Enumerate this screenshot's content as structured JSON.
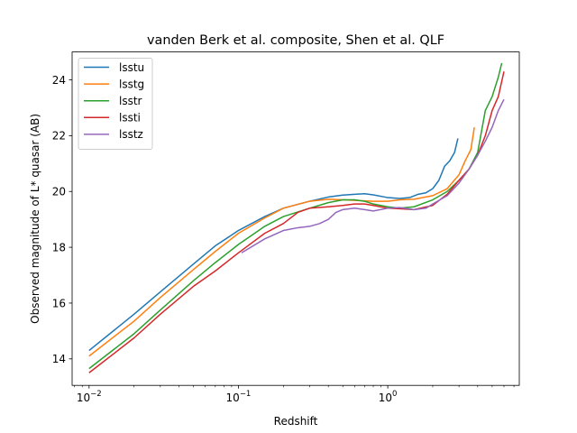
{
  "chart_data": {
    "type": "line",
    "title": "vanden Berk et al. composite, Shen et al. QLF",
    "xlabel": "Redshift",
    "ylabel": "Observed magnitude of L* quasar (AB)",
    "xscale": "log",
    "xlim": [
      0.0077,
      7.6
    ],
    "ylim": [
      13.05,
      25.0
    ],
    "x_ticks": [
      {
        "value": 0.01,
        "base": "10",
        "exp": "−2"
      },
      {
        "value": 0.1,
        "base": "10",
        "exp": "−1"
      },
      {
        "value": 1,
        "base": "10",
        "exp": "0"
      }
    ],
    "y_ticks": [
      {
        "value": 14,
        "label": "14"
      },
      {
        "value": 16,
        "label": "16"
      },
      {
        "value": 18,
        "label": "18"
      },
      {
        "value": 20,
        "label": "20"
      },
      {
        "value": 22,
        "label": "22"
      },
      {
        "value": 24,
        "label": "24"
      }
    ],
    "grid": false,
    "legend": "upper left",
    "series": [
      {
        "name": "lsstu",
        "color": "#1f77b4",
        "points": [
          [
            0.01,
            14.3
          ],
          [
            0.02,
            15.6
          ],
          [
            0.03,
            16.4
          ],
          [
            0.05,
            17.4
          ],
          [
            0.07,
            18.05
          ],
          [
            0.1,
            18.6
          ],
          [
            0.15,
            19.1
          ],
          [
            0.2,
            19.4
          ],
          [
            0.3,
            19.65
          ],
          [
            0.4,
            19.8
          ],
          [
            0.5,
            19.87
          ],
          [
            0.6,
            19.9
          ],
          [
            0.7,
            19.92
          ],
          [
            0.8,
            19.88
          ],
          [
            1.0,
            19.78
          ],
          [
            1.2,
            19.75
          ],
          [
            1.4,
            19.78
          ],
          [
            1.6,
            19.9
          ],
          [
            1.8,
            19.95
          ],
          [
            2.0,
            20.1
          ],
          [
            2.2,
            20.4
          ],
          [
            2.4,
            20.9
          ],
          [
            2.6,
            21.1
          ],
          [
            2.8,
            21.4
          ],
          [
            2.95,
            21.9
          ]
        ]
      },
      {
        "name": "lsstg",
        "color": "#ff7f0e",
        "points": [
          [
            0.01,
            14.1
          ],
          [
            0.02,
            15.35
          ],
          [
            0.03,
            16.2
          ],
          [
            0.05,
            17.2
          ],
          [
            0.07,
            17.85
          ],
          [
            0.1,
            18.5
          ],
          [
            0.15,
            19.05
          ],
          [
            0.2,
            19.4
          ],
          [
            0.3,
            19.65
          ],
          [
            0.4,
            19.72
          ],
          [
            0.5,
            19.7
          ],
          [
            0.6,
            19.68
          ],
          [
            0.8,
            19.65
          ],
          [
            1.0,
            19.65
          ],
          [
            1.2,
            19.7
          ],
          [
            1.5,
            19.72
          ],
          [
            2.0,
            19.85
          ],
          [
            2.5,
            20.1
          ],
          [
            3.0,
            20.6
          ],
          [
            3.3,
            21.1
          ],
          [
            3.6,
            21.5
          ],
          [
            3.8,
            22.3
          ]
        ]
      },
      {
        "name": "lsstr",
        "color": "#2ca02c",
        "points": [
          [
            0.01,
            13.65
          ],
          [
            0.02,
            14.9
          ],
          [
            0.03,
            15.75
          ],
          [
            0.05,
            16.8
          ],
          [
            0.07,
            17.45
          ],
          [
            0.1,
            18.1
          ],
          [
            0.15,
            18.75
          ],
          [
            0.2,
            19.1
          ],
          [
            0.3,
            19.4
          ],
          [
            0.4,
            19.6
          ],
          [
            0.5,
            19.7
          ],
          [
            0.6,
            19.7
          ],
          [
            0.7,
            19.65
          ],
          [
            0.8,
            19.55
          ],
          [
            1.0,
            19.45
          ],
          [
            1.2,
            19.4
          ],
          [
            1.5,
            19.45
          ],
          [
            2.0,
            19.7
          ],
          [
            2.5,
            20.0
          ],
          [
            3.0,
            20.4
          ],
          [
            3.5,
            20.8
          ],
          [
            4.0,
            21.4
          ],
          [
            4.5,
            22.9
          ],
          [
            5.0,
            23.4
          ],
          [
            5.5,
            24.1
          ],
          [
            5.8,
            24.6
          ]
        ]
      },
      {
        "name": "lssti",
        "color": "#d62728",
        "points": [
          [
            0.01,
            13.5
          ],
          [
            0.02,
            14.75
          ],
          [
            0.03,
            15.6
          ],
          [
            0.05,
            16.6
          ],
          [
            0.07,
            17.15
          ],
          [
            0.1,
            17.8
          ],
          [
            0.15,
            18.5
          ],
          [
            0.2,
            18.85
          ],
          [
            0.25,
            19.25
          ],
          [
            0.3,
            19.4
          ],
          [
            0.4,
            19.45
          ],
          [
            0.5,
            19.5
          ],
          [
            0.6,
            19.55
          ],
          [
            0.7,
            19.55
          ],
          [
            0.8,
            19.5
          ],
          [
            1.0,
            19.4
          ],
          [
            1.2,
            19.38
          ],
          [
            1.5,
            19.35
          ],
          [
            2.0,
            19.5
          ],
          [
            2.5,
            19.9
          ],
          [
            3.0,
            20.4
          ],
          [
            3.5,
            20.8
          ],
          [
            4.0,
            21.3
          ],
          [
            4.5,
            22.0
          ],
          [
            5.0,
            22.9
          ],
          [
            5.5,
            23.4
          ],
          [
            6.0,
            24.3
          ]
        ]
      },
      {
        "name": "lsstz",
        "color": "#9467bd",
        "points": [
          [
            0.105,
            17.8
          ],
          [
            0.15,
            18.3
          ],
          [
            0.2,
            18.6
          ],
          [
            0.25,
            18.7
          ],
          [
            0.3,
            18.75
          ],
          [
            0.35,
            18.85
          ],
          [
            0.4,
            19.0
          ],
          [
            0.45,
            19.25
          ],
          [
            0.5,
            19.35
          ],
          [
            0.6,
            19.4
          ],
          [
            0.7,
            19.35
          ],
          [
            0.8,
            19.3
          ],
          [
            1.0,
            19.4
          ],
          [
            1.2,
            19.42
          ],
          [
            1.5,
            19.35
          ],
          [
            1.8,
            19.4
          ],
          [
            2.0,
            19.55
          ],
          [
            2.5,
            19.85
          ],
          [
            3.0,
            20.3
          ],
          [
            3.5,
            20.8
          ],
          [
            4.0,
            21.3
          ],
          [
            4.5,
            21.8
          ],
          [
            5.0,
            22.3
          ],
          [
            5.5,
            22.9
          ],
          [
            6.0,
            23.3
          ]
        ]
      }
    ]
  }
}
